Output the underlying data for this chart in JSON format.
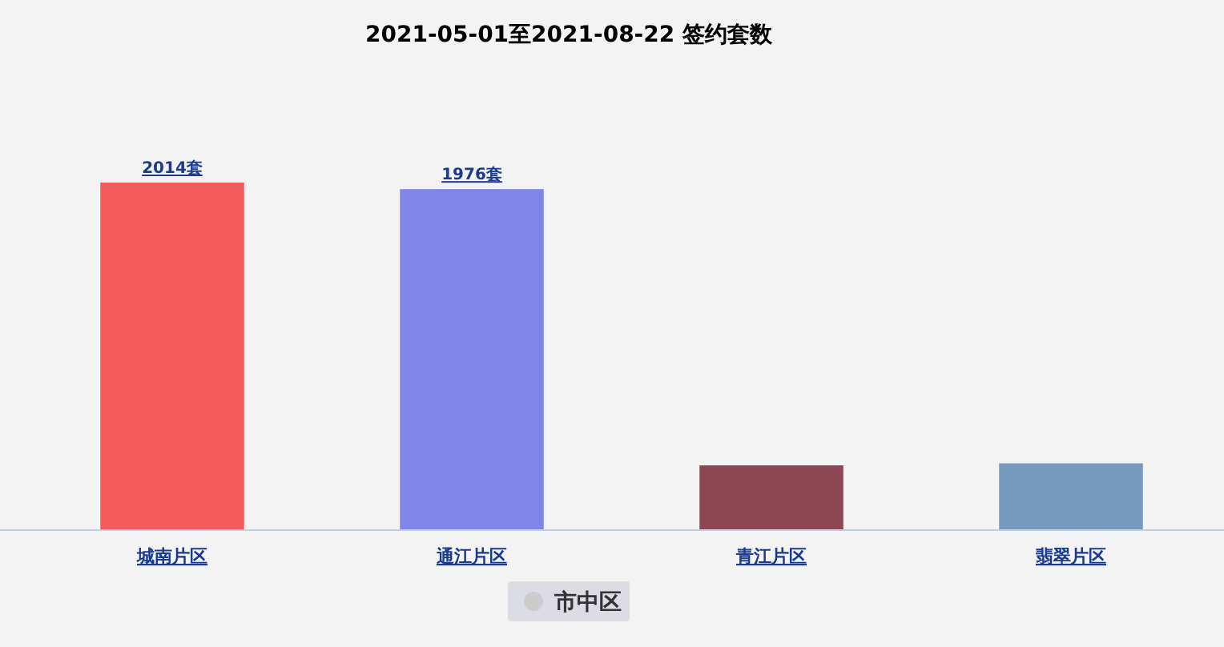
{
  "chart_data": {
    "type": "bar",
    "title": "2021-05-01至2021-08-22 签约套数",
    "categories": [
      "城南片区",
      "通江片区",
      "青江片区",
      "翡翠片区"
    ],
    "series": [
      {
        "name": "市中区",
        "colors": [
          "#f45b5b",
          "#8085e9",
          "#8d4654",
          "#7798bf"
        ],
        "values": [
          2014,
          1976,
          375,
          387
        ],
        "value_labels": [
          "2014套",
          "1976套",
          null,
          null
        ]
      }
    ],
    "legend": "bottom"
  }
}
